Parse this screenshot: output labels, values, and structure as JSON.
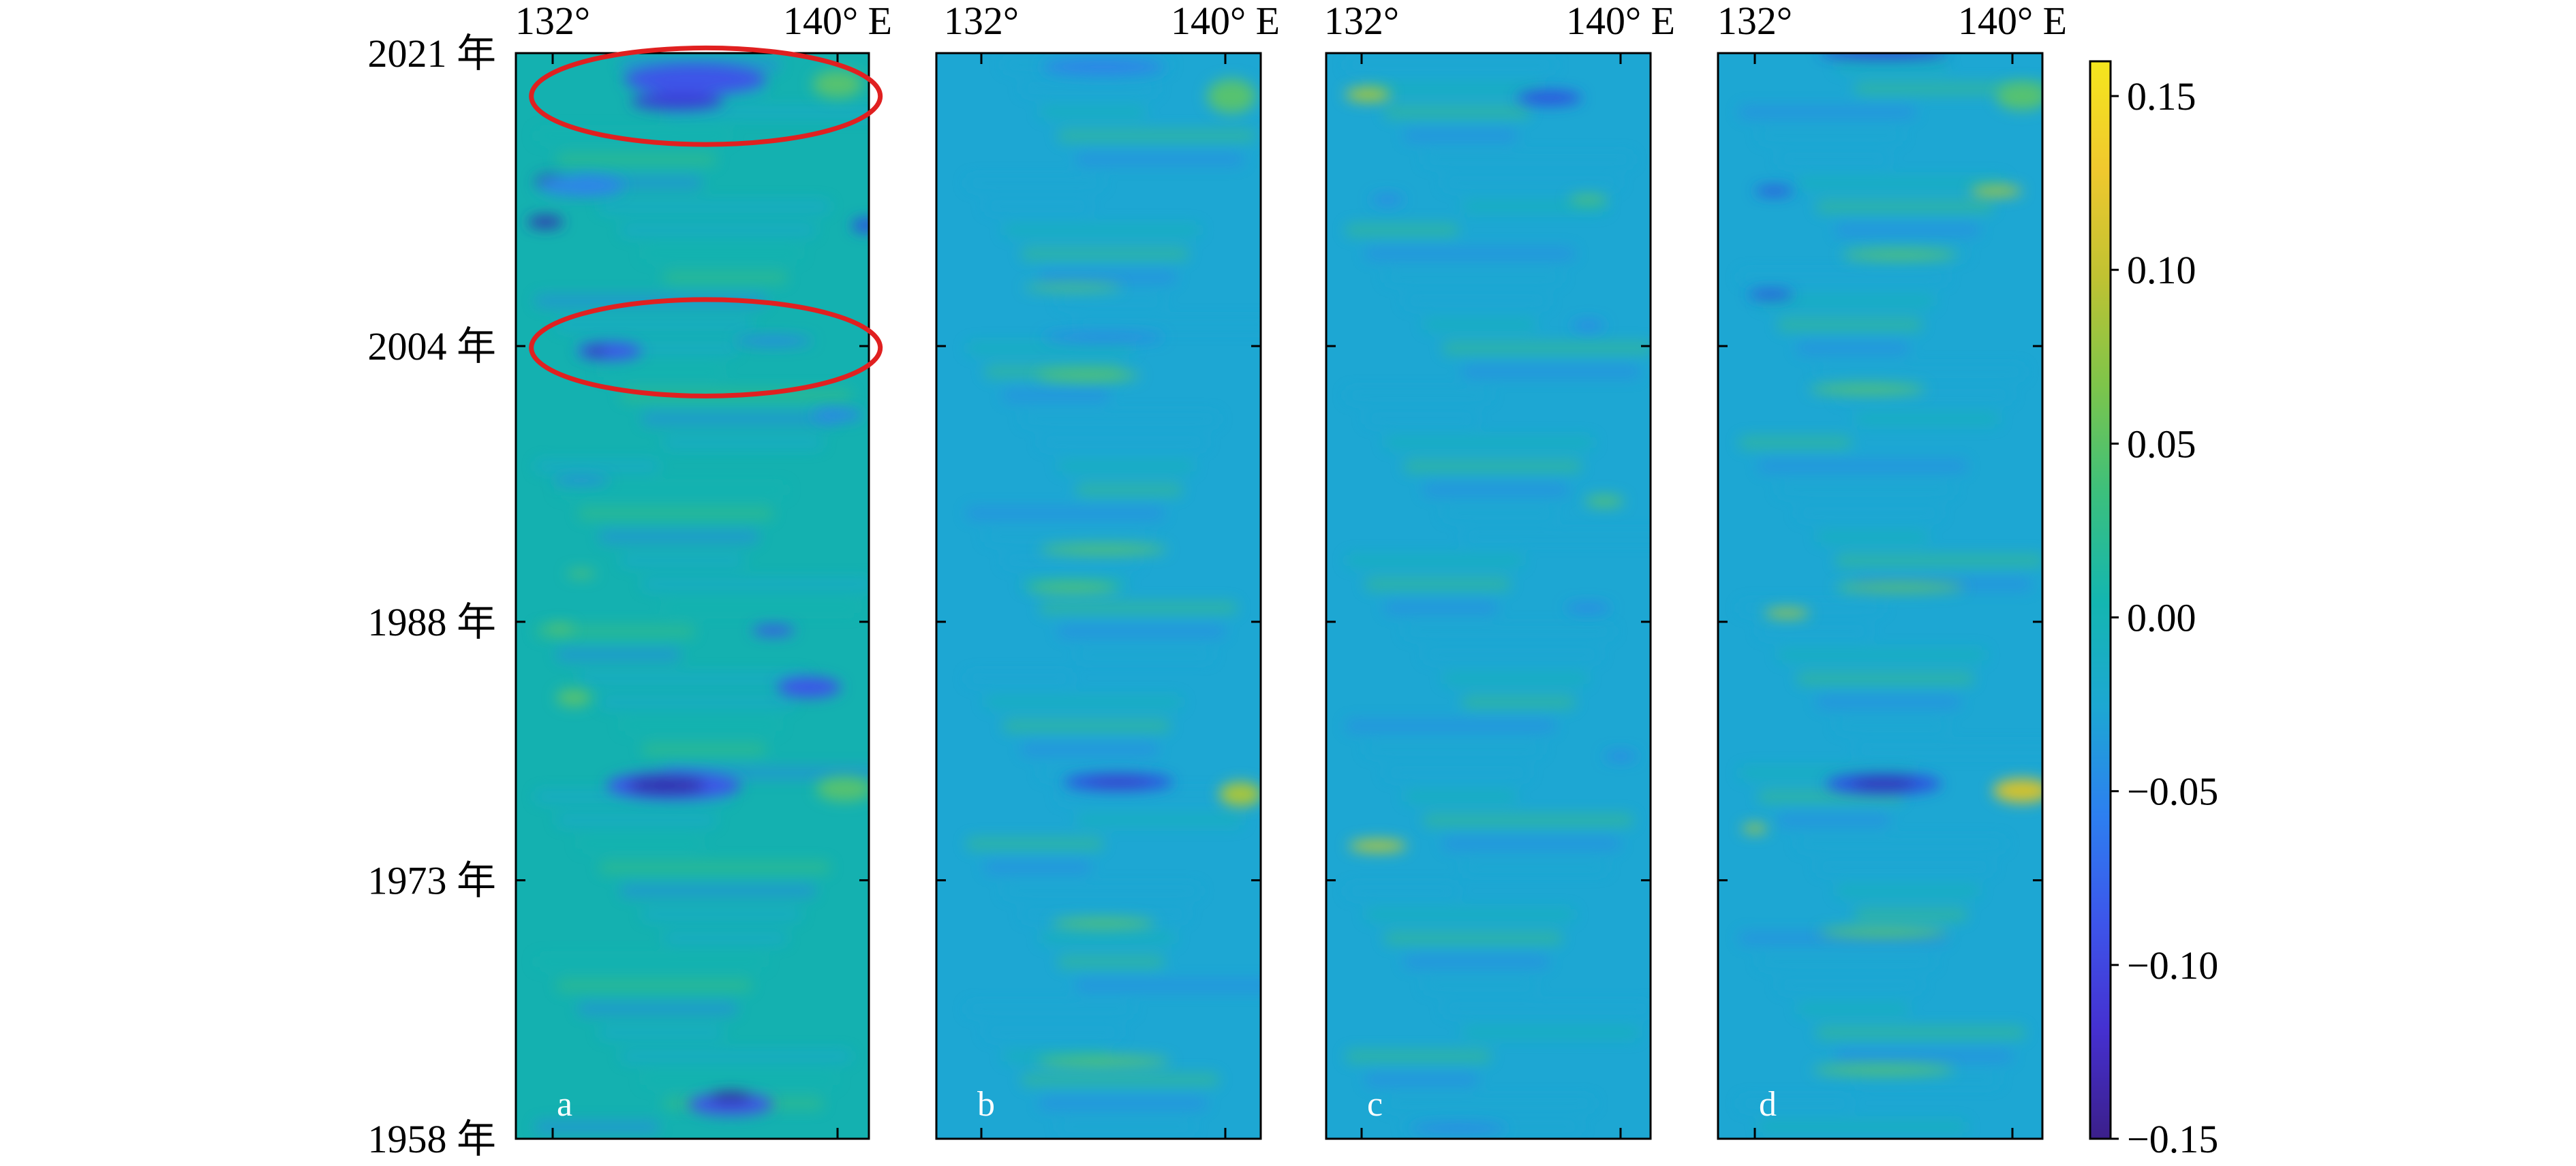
{
  "chart_data": {
    "type": "heatmap",
    "panels": [
      {
        "id": "a",
        "label": "a",
        "x_ticks": [
          "132°",
          "140° E"
        ],
        "xlim": [
          131,
          141.5
        ],
        "ylim": [
          1958,
          2021
        ],
        "bg": "#14b1b0",
        "blobs": [
          {
            "lon": 136.0,
            "year": 2019.5,
            "w": 4.0,
            "h": 1.8,
            "c": "#3c55e8"
          },
          {
            "lon": 135.5,
            "year": 2018.2,
            "w": 2.6,
            "h": 1.0,
            "c": "#3a3fd6"
          },
          {
            "lon": 140.0,
            "year": 2019.2,
            "w": 1.4,
            "h": 1.6,
            "c": "#57c26f"
          },
          {
            "lon": 132.0,
            "year": 2013.5,
            "w": 1.0,
            "h": 0.9,
            "c": "#3135b0"
          },
          {
            "lon": 131.8,
            "year": 2011.2,
            "w": 1.0,
            "h": 0.7,
            "c": "#3135b0"
          },
          {
            "lon": 132.8,
            "year": 2013.3,
            "w": 2.4,
            "h": 1.2,
            "c": "#2d85e8"
          },
          {
            "lon": 140.8,
            "year": 2011.0,
            "w": 0.8,
            "h": 0.8,
            "c": "#2d4fe0"
          },
          {
            "lon": 133.6,
            "year": 2003.7,
            "w": 1.8,
            "h": 1.0,
            "c": "#3c55e8"
          },
          {
            "lon": 133.2,
            "year": 2003.7,
            "w": 0.6,
            "h": 0.5,
            "c": "#3135b0"
          },
          {
            "lon": 138.2,
            "year": 2004.3,
            "w": 2.2,
            "h": 0.5,
            "c": "#2d85e8"
          },
          {
            "lon": 140.0,
            "year": 2000.0,
            "w": 1.4,
            "h": 0.7,
            "c": "#2d85e8"
          },
          {
            "lon": 132.8,
            "year": 1996.2,
            "w": 1.6,
            "h": 0.4,
            "c": "#2d85e8"
          },
          {
            "lon": 132.8,
            "year": 1990.8,
            "w": 0.8,
            "h": 0.4,
            "c": "#57c26f"
          },
          {
            "lon": 132.2,
            "year": 1987.6,
            "w": 0.8,
            "h": 0.5,
            "c": "#57c26f"
          },
          {
            "lon": 138.2,
            "year": 1987.5,
            "w": 1.2,
            "h": 0.6,
            "c": "#3c55e8"
          },
          {
            "lon": 139.2,
            "year": 1984.2,
            "w": 1.8,
            "h": 1.2,
            "c": "#3c55e8"
          },
          {
            "lon": 132.6,
            "year": 1983.6,
            "w": 1.0,
            "h": 1.0,
            "c": "#57c26f"
          },
          {
            "lon": 135.4,
            "year": 1978.5,
            "w": 3.8,
            "h": 1.6,
            "c": "#3c55e8"
          },
          {
            "lon": 135.2,
            "year": 1978.5,
            "w": 2.2,
            "h": 1.0,
            "c": "#3030a8"
          },
          {
            "lon": 140.2,
            "year": 1978.3,
            "w": 1.6,
            "h": 1.4,
            "c": "#57c26f"
          },
          {
            "lon": 137.0,
            "year": 1960.0,
            "w": 2.4,
            "h": 1.3,
            "c": "#3c55e8"
          },
          {
            "lon": 137.0,
            "year": 1960.4,
            "w": 1.2,
            "h": 0.7,
            "c": "#3030a8"
          }
        ]
      },
      {
        "id": "b",
        "label": "b",
        "x_ticks": [
          "132°",
          "140° E"
        ],
        "xlim": [
          131,
          141.5
        ],
        "ylim": [
          1958,
          2021
        ],
        "bg": "#1da7d3",
        "blobs": [
          {
            "lon": 136.0,
            "year": 2020.2,
            "w": 4.0,
            "h": 1.0,
            "c": "#2d85e8"
          },
          {
            "lon": 140.2,
            "year": 2018.5,
            "w": 1.6,
            "h": 2.0,
            "c": "#57c26f"
          },
          {
            "lon": 135.0,
            "year": 2007.4,
            "w": 3.2,
            "h": 0.4,
            "c": "#57c26f"
          },
          {
            "lon": 136.0,
            "year": 2004.5,
            "w": 4.0,
            "h": 0.5,
            "c": "#2d85e8"
          },
          {
            "lon": 135.5,
            "year": 2002.3,
            "w": 3.4,
            "h": 0.6,
            "c": "#57c26f"
          },
          {
            "lon": 136.0,
            "year": 1992.2,
            "w": 4.2,
            "h": 0.6,
            "c": "#57c26f"
          },
          {
            "lon": 135.0,
            "year": 1990.0,
            "w": 3.0,
            "h": 0.6,
            "c": "#57c26f"
          },
          {
            "lon": 136.5,
            "year": 1978.7,
            "w": 3.6,
            "h": 1.0,
            "c": "#2d4fe0"
          },
          {
            "lon": 136.5,
            "year": 1978.7,
            "w": 2.0,
            "h": 0.5,
            "c": "#3a3fc8"
          },
          {
            "lon": 140.5,
            "year": 1978.0,
            "w": 1.4,
            "h": 1.4,
            "c": "#a8c63a"
          },
          {
            "lon": 136.0,
            "year": 1970.5,
            "w": 3.4,
            "h": 0.6,
            "c": "#57c26f"
          },
          {
            "lon": 136.0,
            "year": 1962.5,
            "w": 4.4,
            "h": 0.6,
            "c": "#57c26f"
          }
        ]
      },
      {
        "id": "c",
        "label": "c",
        "x_ticks": [
          "132°",
          "140° E"
        ],
        "xlim": [
          131,
          141.5
        ],
        "ylim": [
          1958,
          2021
        ],
        "bg": "#1da7d3",
        "blobs": [
          {
            "lon": 132.2,
            "year": 2018.6,
            "w": 1.4,
            "h": 0.8,
            "c": "#a8c63a"
          },
          {
            "lon": 137.8,
            "year": 2018.4,
            "w": 2.0,
            "h": 0.8,
            "c": "#2d4fe0"
          },
          {
            "lon": 139.0,
            "year": 2012.5,
            "w": 1.2,
            "h": 0.5,
            "c": "#57c26f"
          },
          {
            "lon": 132.8,
            "year": 2012.5,
            "w": 1.0,
            "h": 0.5,
            "c": "#2d85e8"
          },
          {
            "lon": 139.0,
            "year": 2005.2,
            "w": 1.0,
            "h": 0.5,
            "c": "#2d85e8"
          },
          {
            "lon": 139.5,
            "year": 1995.0,
            "w": 1.2,
            "h": 0.6,
            "c": "#57c26f"
          },
          {
            "lon": 139.0,
            "year": 1988.8,
            "w": 1.4,
            "h": 0.5,
            "c": "#2d85e8"
          },
          {
            "lon": 132.5,
            "year": 1975.0,
            "w": 1.8,
            "h": 0.7,
            "c": "#b2c63a"
          },
          {
            "lon": 140.0,
            "year": 1980.2,
            "w": 1.0,
            "h": 0.5,
            "c": "#2d85e8"
          },
          {
            "lon": 135.0,
            "year": 1958.6,
            "w": 3.0,
            "h": 0.5,
            "c": "#2d85e8"
          }
        ]
      },
      {
        "id": "d",
        "label": "d",
        "x_ticks": [
          "132°",
          "140° E"
        ],
        "xlim": [
          131,
          141.5
        ],
        "ylim": [
          1958,
          2021
        ],
        "bg": "#1da7d3",
        "blobs": [
          {
            "lon": 136.0,
            "year": 2021.0,
            "w": 4.0,
            "h": 0.6,
            "c": "#3040d0"
          },
          {
            "lon": 140.3,
            "year": 2018.5,
            "w": 1.6,
            "h": 1.6,
            "c": "#57c26f"
          },
          {
            "lon": 139.5,
            "year": 2013.0,
            "w": 1.6,
            "h": 0.6,
            "c": "#a8c63a"
          },
          {
            "lon": 132.6,
            "year": 2013.0,
            "w": 1.2,
            "h": 0.5,
            "c": "#2d4fe0"
          },
          {
            "lon": 136.5,
            "year": 2009.3,
            "w": 3.6,
            "h": 0.6,
            "c": "#57c26f"
          },
          {
            "lon": 132.5,
            "year": 2007.0,
            "w": 1.4,
            "h": 0.5,
            "c": "#2d4fe0"
          },
          {
            "lon": 135.5,
            "year": 2001.5,
            "w": 3.6,
            "h": 0.6,
            "c": "#57c26f"
          },
          {
            "lon": 136.5,
            "year": 1990.0,
            "w": 4.0,
            "h": 0.6,
            "c": "#57c26f"
          },
          {
            "lon": 133.0,
            "year": 1988.5,
            "w": 1.4,
            "h": 0.5,
            "c": "#a8c63a"
          },
          {
            "lon": 136.0,
            "year": 1978.6,
            "w": 3.6,
            "h": 1.2,
            "c": "#2d4fe0"
          },
          {
            "lon": 136.0,
            "year": 1978.6,
            "w": 2.0,
            "h": 0.6,
            "c": "#3030a8"
          },
          {
            "lon": 140.3,
            "year": 1978.2,
            "w": 1.8,
            "h": 1.4,
            "c": "#d4c22e"
          },
          {
            "lon": 132.0,
            "year": 1976.0,
            "w": 0.8,
            "h": 0.5,
            "c": "#a8c63a"
          },
          {
            "lon": 136.0,
            "year": 1970.0,
            "w": 4.0,
            "h": 0.6,
            "c": "#57c26f"
          },
          {
            "lon": 136.0,
            "year": 1962.0,
            "w": 4.4,
            "h": 0.6,
            "c": "#57c26f"
          }
        ]
      }
    ],
    "y_ticks": [
      {
        "year": 2021,
        "label": "2021 年"
      },
      {
        "year": 2004,
        "label": "2004 年"
      },
      {
        "year": 1988,
        "label": "1988 年"
      },
      {
        "year": 1973,
        "label": "1973 年"
      },
      {
        "year": 1958,
        "label": "1958 年"
      }
    ],
    "colorbar": {
      "vmin": -0.15,
      "vmax": 0.16,
      "ticks": [
        {
          "value": 0.15,
          "label": "0.15"
        },
        {
          "value": 0.1,
          "label": "0.10"
        },
        {
          "value": 0.05,
          "label": "0.05"
        },
        {
          "value": 0.0,
          "label": "0.00"
        },
        {
          "value": -0.05,
          "label": "−0.05"
        },
        {
          "value": -0.1,
          "label": "−0.10"
        },
        {
          "value": -0.15,
          "label": "−0.15"
        }
      ],
      "colors": [
        "#3b1f8a",
        "#4530d0",
        "#3d55ea",
        "#2d7ff0",
        "#1da7d3",
        "#14b6b0",
        "#3cc07c",
        "#7ec54a",
        "#c0c232",
        "#f0c82e",
        "#f5e61d"
      ]
    },
    "annotations": [
      {
        "panel": "a",
        "type": "ellipse",
        "lon": 136.3,
        "year": 2018.5,
        "rx_deg": 4.9,
        "ry_years": 2.8,
        "color": "#e02020"
      },
      {
        "panel": "a",
        "type": "ellipse",
        "lon": 136.3,
        "year": 2003.9,
        "rx_deg": 4.9,
        "ry_years": 2.8,
        "color": "#e02020"
      }
    ]
  }
}
